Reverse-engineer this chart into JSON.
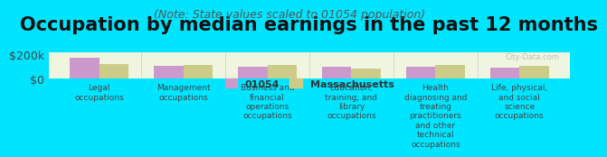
{
  "title": "Occupation by median earnings in the past 12 months",
  "subtitle": "(Note: State values scaled to 01054 population)",
  "categories": [
    "Legal\noccupations",
    "Management\noccupations",
    "Business and\nfinancial\noperations\noccupations",
    "Education,\ntraining, and\nlibrary\noccupations",
    "Health\ndiagnosing and\ntreating\npractitioners\nand other\ntechnical\noccupations",
    "Life, physical,\nand social\nscience\noccupations"
  ],
  "values_01054": [
    170000,
    105000,
    100000,
    95000,
    95000,
    93000
  ],
  "values_mass": [
    120000,
    115000,
    110000,
    80000,
    115000,
    105000
  ],
  "color_01054": "#cc99cc",
  "color_mass": "#cccc88",
  "background_outer": "#00e5ff",
  "background_plot": "#f0f5e0",
  "yticks": [
    0,
    200000
  ],
  "ytick_labels": [
    "$0",
    "$200k"
  ],
  "ylabel_fontsize": 9,
  "title_fontsize": 15,
  "subtitle_fontsize": 9,
  "legend_label_01054": "01054",
  "legend_label_mass": "Massachusetts",
  "bar_width": 0.35
}
